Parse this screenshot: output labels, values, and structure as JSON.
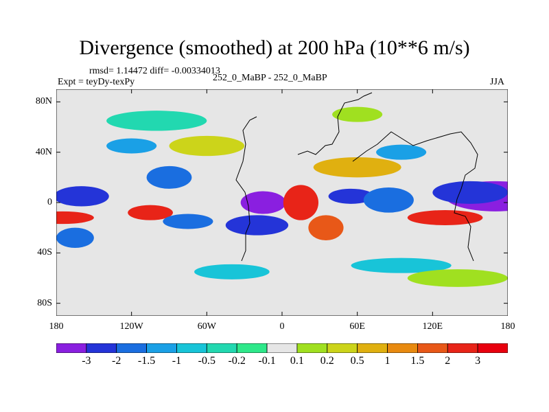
{
  "chart_data": {
    "type": "heatmap",
    "title": "Divergence (smoothed) at 200 hPa (10**6 m/s)",
    "stats": "rmsd= 1.14472 diff= -0.00334013",
    "experiment": "Expt = teyDy-texPy",
    "subtitle": "252_0_MaBP - 252_0_MaBP",
    "season": "JJA",
    "x_ticks": [
      "180",
      "120W",
      "60W",
      "0",
      "60E",
      "120E",
      "180"
    ],
    "x_tick_values": [
      -180,
      -120,
      -60,
      0,
      60,
      120,
      180
    ],
    "y_ticks": [
      "80N",
      "40N",
      "0",
      "40S",
      "80S"
    ],
    "y_tick_values": [
      80,
      40,
      0,
      -40,
      -80
    ],
    "xlim": [
      -180,
      180
    ],
    "ylim": [
      -90,
      90
    ],
    "colorbar_labels": [
      "-3",
      "-2",
      "-1.5",
      "-1",
      "-0.5",
      "-0.2",
      "-0.1",
      "0.1",
      "0.2",
      "0.5",
      "1",
      "1.5",
      "2",
      "3"
    ],
    "colorbar_colors": [
      "#8a1fe0",
      "#2434d8",
      "#1a6ee0",
      "#1aa0e6",
      "#18c4d8",
      "#22d8b0",
      "#2ee88a",
      "#e6e6e6",
      "#a0e020",
      "#ccd41a",
      "#e0b010",
      "#e88a10",
      "#e85818",
      "#e82418",
      "#e8000e"
    ],
    "data_blobs": [
      {
        "lon": 170,
        "lat": 5,
        "rx": 40,
        "ry": 12,
        "value": -3
      },
      {
        "lon": 150,
        "lat": 8,
        "rx": 30,
        "ry": 9,
        "value": -2
      },
      {
        "lon": 130,
        "lat": -12,
        "rx": 30,
        "ry": 6,
        "value": 3
      },
      {
        "lon": -160,
        "lat": 5,
        "rx": 22,
        "ry": 8,
        "value": -2
      },
      {
        "lon": -175,
        "lat": -12,
        "rx": 25,
        "ry": 5,
        "value": 3
      },
      {
        "lon": -105,
        "lat": -8,
        "rx": 18,
        "ry": 6,
        "value": 3
      },
      {
        "lon": -90,
        "lat": 20,
        "rx": 18,
        "ry": 9,
        "value": -1.5
      },
      {
        "lon": -75,
        "lat": -15,
        "rx": 20,
        "ry": 6,
        "value": -1.5
      },
      {
        "lon": -15,
        "lat": 0,
        "rx": 18,
        "ry": 9,
        "value": -3
      },
      {
        "lon": -20,
        "lat": -18,
        "rx": 25,
        "ry": 8,
        "value": -2
      },
      {
        "lon": 15,
        "lat": 0,
        "rx": 14,
        "ry": 14,
        "value": 3
      },
      {
        "lon": 55,
        "lat": 5,
        "rx": 18,
        "ry": 6,
        "value": -2
      },
      {
        "lon": 85,
        "lat": 2,
        "rx": 20,
        "ry": 10,
        "value": -1.5
      },
      {
        "lon": 35,
        "lat": -20,
        "rx": 14,
        "ry": 10,
        "value": 2
      },
      {
        "lon": -165,
        "lat": -28,
        "rx": 15,
        "ry": 8,
        "value": -1.5
      },
      {
        "lon": -60,
        "lat": 45,
        "rx": 30,
        "ry": 8,
        "value": 0.5
      },
      {
        "lon": 60,
        "lat": 28,
        "rx": 35,
        "ry": 8,
        "value": 1
      },
      {
        "lon": 95,
        "lat": 40,
        "rx": 20,
        "ry": 6,
        "value": -1
      },
      {
        "lon": -120,
        "lat": 45,
        "rx": 20,
        "ry": 6,
        "value": -1
      },
      {
        "lon": -40,
        "lat": -55,
        "rx": 30,
        "ry": 6,
        "value": -0.5
      },
      {
        "lon": 95,
        "lat": -50,
        "rx": 40,
        "ry": 6,
        "value": -0.5
      },
      {
        "lon": -100,
        "lat": 65,
        "rx": 40,
        "ry": 8,
        "value": -0.2
      },
      {
        "lon": 60,
        "lat": 70,
        "rx": 20,
        "ry": 6,
        "value": 0.2
      },
      {
        "lon": 140,
        "lat": -60,
        "rx": 40,
        "ry": 7,
        "value": 0.2
      }
    ]
  }
}
